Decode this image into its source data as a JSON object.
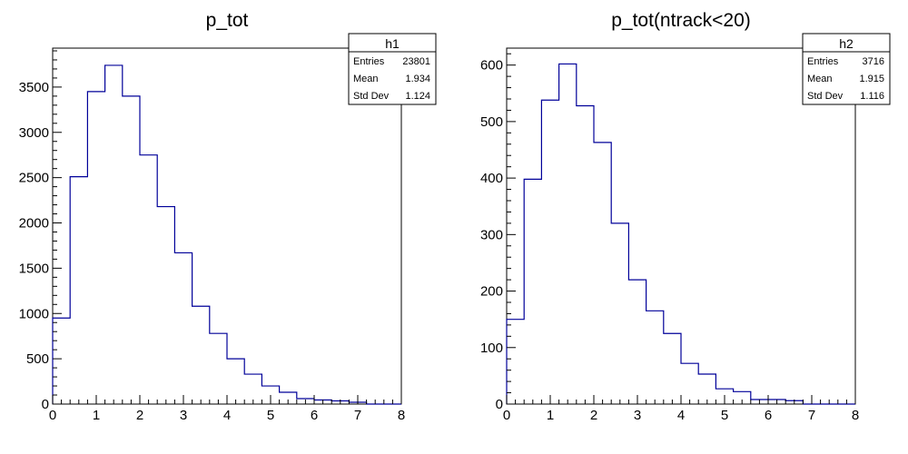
{
  "chart_data": [
    {
      "type": "histogram",
      "title": "p_tot",
      "xlabel": "",
      "ylabel": "",
      "xlim": [
        0,
        8
      ],
      "ylim": [
        0,
        3930
      ],
      "x_ticks": [
        "0",
        "1",
        "2",
        "3",
        "4",
        "5",
        "6",
        "7",
        "8"
      ],
      "y_ticks": [
        0,
        500,
        1000,
        1500,
        2000,
        2500,
        3000,
        3500
      ],
      "bin_width": 0.4,
      "bins_start": 0,
      "values": [
        950,
        2510,
        3450,
        3740,
        3400,
        2750,
        2180,
        1670,
        1080,
        780,
        500,
        330,
        200,
        130,
        60,
        45,
        35,
        20,
        0,
        0
      ],
      "line_color": "#000099",
      "stats": {
        "name": "h1",
        "rows": [
          {
            "label": "Entries",
            "value": "23801"
          },
          {
            "label": "Mean",
            "value": "1.934"
          },
          {
            "label": "Std Dev",
            "value": "1.124"
          }
        ]
      }
    },
    {
      "type": "histogram",
      "title": "p_tot(ntrack<20)",
      "xlabel": "",
      "ylabel": "",
      "xlim": [
        0,
        8
      ],
      "ylim": [
        0,
        630
      ],
      "x_ticks": [
        "0",
        "1",
        "2",
        "3",
        "4",
        "5",
        "6",
        "7",
        "8"
      ],
      "y_ticks": [
        0,
        100,
        200,
        300,
        400,
        500,
        600
      ],
      "bin_width": 0.4,
      "bins_start": 0,
      "values": [
        150,
        398,
        538,
        602,
        528,
        463,
        320,
        220,
        165,
        125,
        72,
        53,
        27,
        22,
        8,
        8,
        6,
        0,
        0,
        0
      ],
      "line_color": "#000099",
      "stats": {
        "name": "h2",
        "rows": [
          {
            "label": "Entries",
            "value": "3716"
          },
          {
            "label": "Mean",
            "value": "1.915"
          },
          {
            "label": "Std Dev",
            "value": "1.116"
          }
        ]
      }
    }
  ]
}
